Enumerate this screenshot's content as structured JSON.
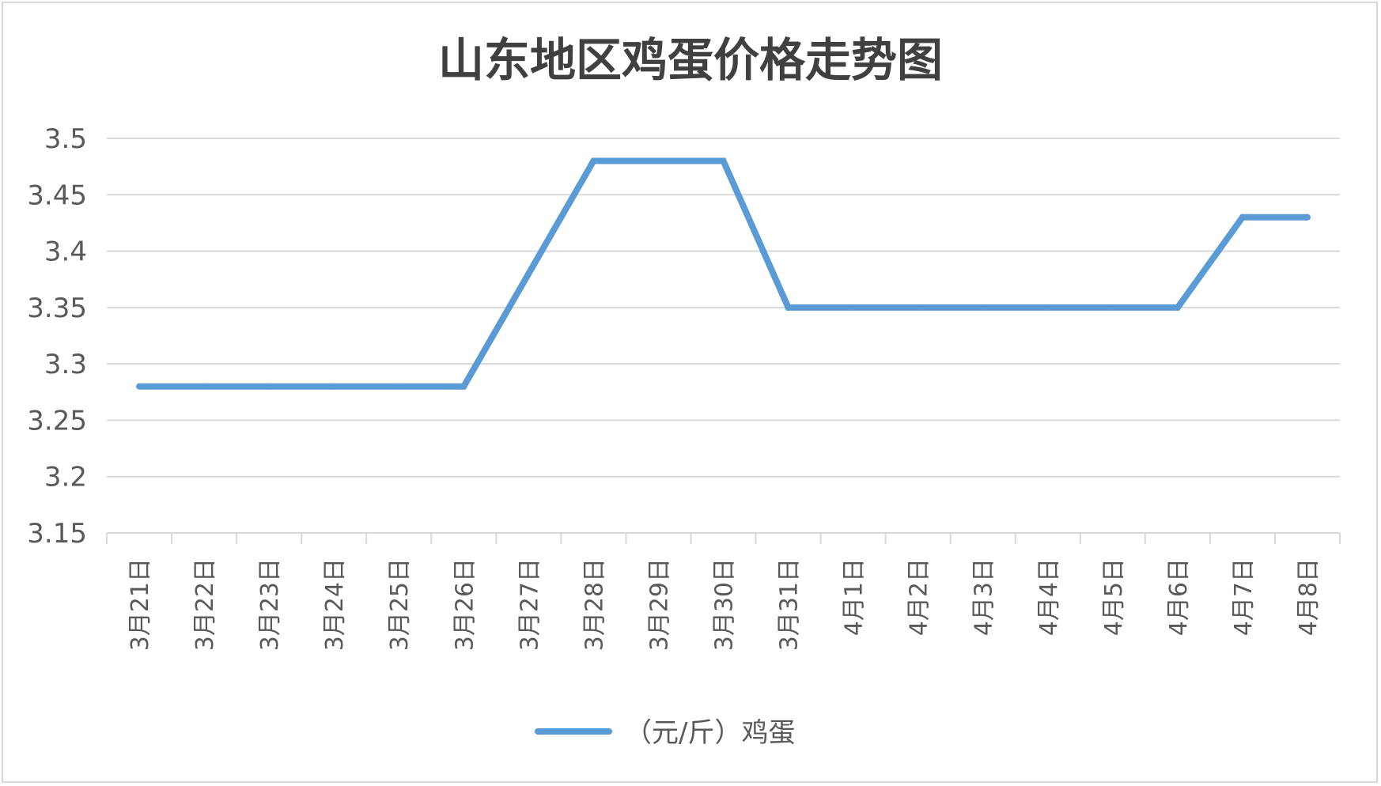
{
  "chart_data": {
    "type": "line",
    "title": "山东地区鸡蛋价格走势图",
    "categories": [
      "3月21日",
      "3月22日",
      "3月23日",
      "3月24日",
      "3月25日",
      "3月26日",
      "3月27日",
      "3月28日",
      "3月29日",
      "3月30日",
      "3月31日",
      "4月1日",
      "4月2日",
      "4月3日",
      "4月4日",
      "4月5日",
      "4月6日",
      "4月7日",
      "4月8日"
    ],
    "series": [
      {
        "name": "（元/斤）鸡蛋",
        "color": "#5b9bd5",
        "values": [
          3.28,
          3.28,
          3.28,
          3.28,
          3.28,
          3.28,
          3.38,
          3.48,
          3.48,
          3.48,
          3.35,
          3.35,
          3.35,
          3.35,
          3.35,
          3.35,
          3.35,
          3.43,
          3.43
        ]
      }
    ],
    "y_ticks": [
      "3.5",
      "3.45",
      "3.4",
      "3.35",
      "3.3",
      "3.25",
      "3.2",
      "3.15"
    ],
    "ylim": [
      3.15,
      3.5
    ],
    "grid": true,
    "legend_position": "bottom"
  }
}
